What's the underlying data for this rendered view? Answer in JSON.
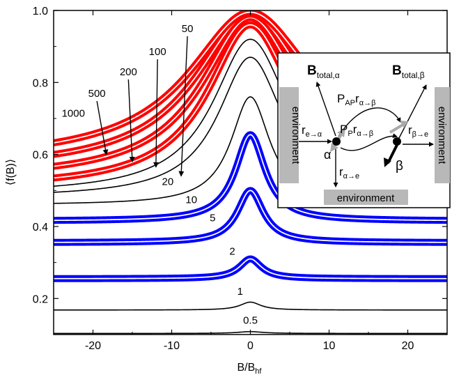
{
  "chart_data": {
    "type": "line",
    "xlabel": "B/B",
    "xlabel_sub": "hf",
    "ylabel": "⟨f(B)⟩",
    "xlim": [
      -25,
      25
    ],
    "ylim": [
      0.1,
      1.0
    ],
    "x_ticks": [
      -20,
      -10,
      0,
      10,
      20
    ],
    "x_tick_labels": [
      "-20",
      "-10",
      "0",
      "10",
      "20"
    ],
    "y_ticks": [
      0.2,
      0.4,
      0.6,
      0.8,
      1.0
    ],
    "y_tick_labels": [
      "0.2",
      "0.4",
      "0.6",
      "0.8",
      "1.0"
    ],
    "grid": false,
    "colors": {
      "red": "#ff0000",
      "blue": "#0000ff",
      "black": "#000000"
    },
    "series": [
      {
        "name": "0.5",
        "style": "black",
        "baseline": 0.103,
        "peak": 0.108,
        "width": 2.0,
        "label_x": 0,
        "label_y": 0.13
      },
      {
        "name": "1",
        "style": "black",
        "baseline": 0.168,
        "peak": 0.19,
        "width": 1.6,
        "label_x": -1.3,
        "label_y": 0.21
      },
      {
        "name": "2",
        "style": "blue",
        "baseline": 0.255,
        "peak": 0.31,
        "width": 1.7,
        "label_x": -2.3,
        "label_y": 0.322
      },
      {
        "name": "5",
        "style": "blue",
        "baseline": 0.355,
        "peak": 0.5,
        "width": 2.0,
        "label_x": -4.8,
        "label_y": 0.415
      },
      {
        "name": "10",
        "style": "blue",
        "baseline": 0.415,
        "peak": 0.655,
        "width": 2.3,
        "label_x": -7.5,
        "label_y": 0.465
      },
      {
        "name": "20",
        "style": "black",
        "baseline": 0.46,
        "peak": 0.76,
        "width": 3.0,
        "label_x": -10.5,
        "label_y": 0.515
      },
      {
        "name": "50",
        "style": "black",
        "baseline": 0.48,
        "peak": 0.87,
        "width": 5.0,
        "label_x": -8.0,
        "label_y": 0.94,
        "arrow_to": [
          -8.8,
          0.54
        ]
      },
      {
        "name": "",
        "style": "black",
        "baseline": 0.49,
        "peak": 0.92,
        "width": 5.8
      },
      {
        "name": "100",
        "style": "red",
        "baseline": 0.505,
        "peak": 0.96,
        "width": 6.6,
        "label_x": -11.8,
        "label_y": 0.876,
        "arrow_to": [
          -12.0,
          0.565
        ]
      },
      {
        "name": "200",
        "style": "red",
        "baseline": 0.53,
        "peak": 0.98,
        "width": 7.5,
        "label_x": -15.5,
        "label_y": 0.82,
        "arrow_to": [
          -15.0,
          0.58
        ]
      },
      {
        "name": "500",
        "style": "red",
        "baseline": 0.555,
        "peak": 0.99,
        "width": 8.5,
        "label_x": -19.5,
        "label_y": 0.76,
        "arrow_to": [
          -18.3,
          0.6
        ]
      },
      {
        "name": "1000",
        "style": "red",
        "baseline": 0.58,
        "peak": 0.995,
        "width": 9.5,
        "label_x": -22.5,
        "label_y": 0.705
      }
    ]
  },
  "inset": {
    "b_total_alpha": "B",
    "b_total_alpha_sub": "total,α",
    "b_total_beta": "B",
    "b_total_beta_sub": "total,β",
    "p_ap": "P",
    "p_ap_sub": "AP",
    "p_ap_r": "r",
    "p_ap_r_sub": "α→β",
    "p_p": "P",
    "p_p_sub": "P",
    "p_p_r": "r",
    "p_p_r_sub": "α→β",
    "r_e_alpha": "r",
    "r_e_alpha_sub": "e→α",
    "r_beta_e": "r",
    "r_beta_e_sub": "β→e",
    "r_alpha_e": "r",
    "r_alpha_e_sub": "α→e",
    "alpha": "α",
    "beta": "β",
    "env_left": "environment",
    "env_right": "environment",
    "env_bottom": "environment"
  }
}
